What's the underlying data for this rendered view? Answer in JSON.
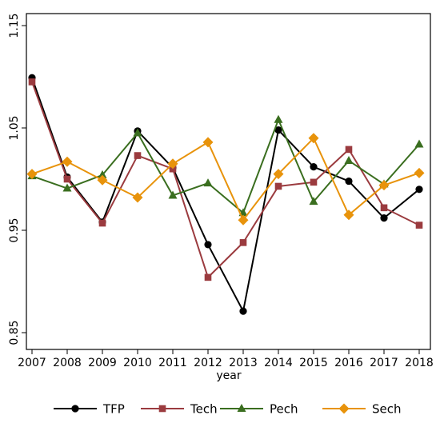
{
  "chart_data": {
    "type": "line",
    "title": "",
    "xlabel": "year",
    "ylabel": "",
    "x": [
      "2007",
      "2008",
      "2009",
      "2010",
      "2011",
      "2012",
      "2013",
      "2014",
      "2015",
      "2016",
      "2017",
      "2018"
    ],
    "yticks": [
      "0.85",
      "0.95",
      "1.05",
      "1.15"
    ],
    "ytick_values": [
      0.85,
      0.95,
      1.05,
      1.15
    ],
    "ylim": [
      0.84,
      1.16
    ],
    "grid": false,
    "legend_position": "bottom",
    "series": [
      {
        "name": "TFP",
        "color": "#000000",
        "marker": "circle",
        "values": [
          1.099,
          1.002,
          0.958,
          1.047,
          1.011,
          0.936,
          0.871,
          1.048,
          1.012,
          0.998,
          0.962,
          0.99
        ]
      },
      {
        "name": "Tech",
        "color": "#9b3b3f",
        "marker": "square",
        "values": [
          1.095,
          1.0,
          0.957,
          1.023,
          1.01,
          0.904,
          0.938,
          0.993,
          0.997,
          1.029,
          0.972,
          0.955
        ]
      },
      {
        "name": "Pech",
        "color": "#3a6e1f",
        "marker": "triangle",
        "values": [
          1.003,
          0.991,
          1.004,
          1.045,
          0.984,
          0.996,
          0.967,
          1.058,
          0.978,
          1.018,
          0.995,
          1.034
        ]
      },
      {
        "name": "Sech",
        "color": "#e8930b",
        "marker": "diamond",
        "values": [
          1.005,
          1.017,
          0.999,
          0.982,
          1.015,
          1.036,
          0.96,
          1.005,
          1.04,
          0.965,
          0.994,
          1.006
        ]
      }
    ]
  }
}
